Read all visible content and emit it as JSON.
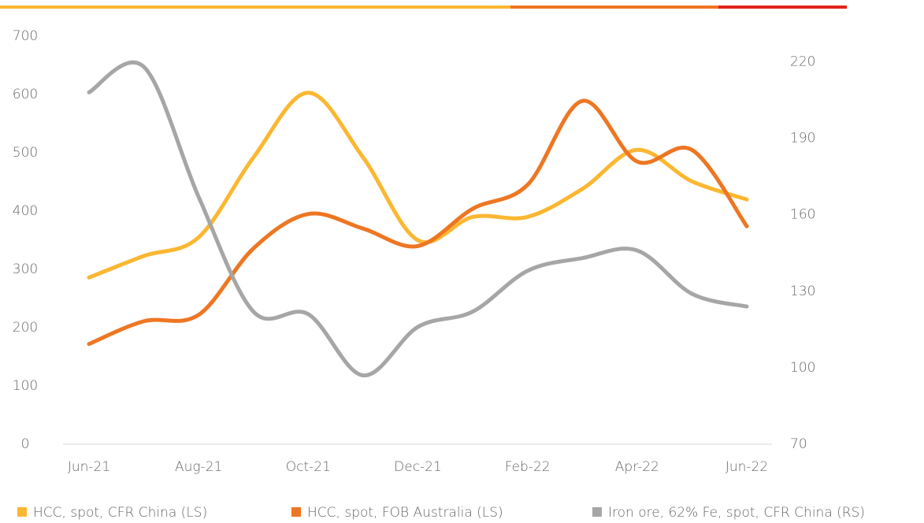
{
  "chart_data": {
    "type": "line",
    "categories": [
      "Jun-21",
      null,
      "Aug-21",
      null,
      "Oct-21",
      null,
      "Dec-21",
      null,
      "Feb-22",
      null,
      "Apr-22",
      null,
      "Jun-22"
    ],
    "series": [
      {
        "name": "HCC, spot, CFR China (LS)",
        "color": "#fbb731",
        "values": [
          286,
          323,
          355,
          492,
          603,
          492,
          350,
          390,
          390,
          438,
          505,
          451,
          420
        ]
      },
      {
        "name": "HCC, spot, FOB Australia (LS)",
        "color": "#ee7623",
        "values": [
          172,
          211,
          222,
          336,
          395,
          370,
          340,
          404,
          445,
          589,
          485,
          505,
          374
        ]
      },
      {
        "name": "Iron ore, 62% Fe, spot, CFR China (RS)",
        "color": "#a6a6a6",
        "axis": "y2",
        "values": [
          208,
          218,
          167,
          122,
          121,
          97,
          116,
          122,
          138,
          143,
          146,
          129,
          124
        ]
      }
    ],
    "ylim": [
      0,
      700
    ],
    "yticks": [
      0,
      100,
      200,
      300,
      400,
      500,
      600,
      700
    ],
    "y2lim": [
      70,
      230
    ],
    "y2ticks": [
      70,
      100,
      130,
      160,
      190,
      220
    ]
  }
}
